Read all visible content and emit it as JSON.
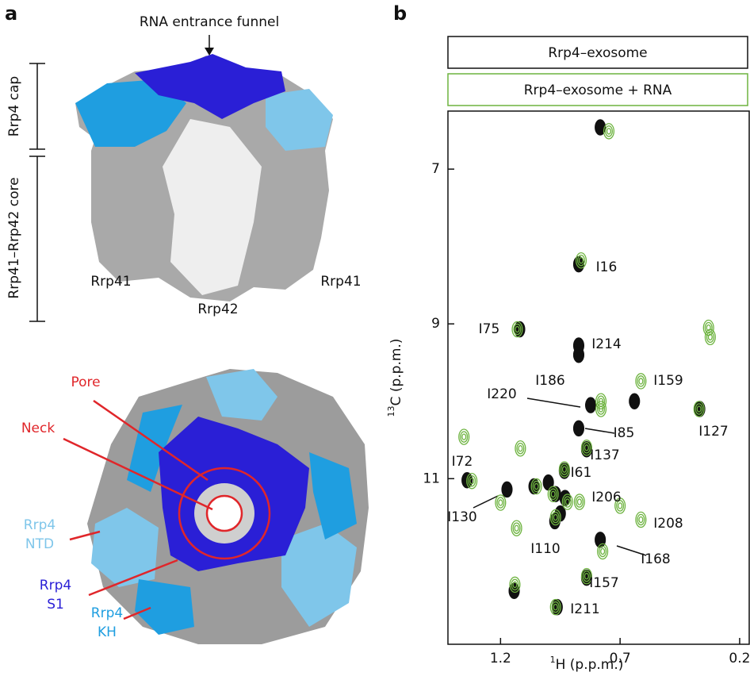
{
  "panel_a": {
    "label": "a",
    "funnel": "RNA entrance funnel",
    "cap": "Rrp4 cap",
    "core": "Rrp41–Rrp42 core",
    "sub_left": "Rrp41",
    "sub_mid": "Rrp42",
    "sub_right": "Rrp41",
    "pore": "Pore",
    "neck": "Neck",
    "ntd": [
      "Rrp4",
      "NTD"
    ],
    "s1": [
      "Rrp4",
      "S1"
    ],
    "kh": [
      "Rrp4",
      "KH"
    ]
  },
  "chart_data": {
    "type": "scatter",
    "label": "b",
    "xlabel": {
      "isotope": "1",
      "text": "H (p.p.m.)"
    },
    "ylabel": {
      "isotope": "13",
      "text": "C (p.p.m.)"
    },
    "xlim": [
      1.42,
      0.16
    ],
    "ylim": [
      6.25,
      13.14
    ],
    "y_inverted": true,
    "xticks": [
      1.2,
      0.7,
      0.2
    ],
    "yticks": [
      7,
      9,
      11
    ],
    "series": [
      {
        "name": "Rrp4–exosome",
        "color": "#111111",
        "x": [
          0.783,
          0.873,
          1.12,
          0.873,
          0.873,
          0.64,
          0.823,
          0.873,
          0.367,
          0.84,
          0.933,
          1.173,
          1.34,
          0.97,
          0.93,
          0.973,
          0.95,
          0.783,
          0.84,
          0.963,
          1.143,
          1.06,
          1.0
        ],
        "values": [
          6.46,
          8.23,
          9.07,
          9.28,
          9.4,
          10.0,
          10.05,
          10.35,
          10.1,
          10.62,
          10.9,
          11.14,
          11.02,
          11.2,
          11.25,
          11.55,
          11.45,
          11.79,
          12.28,
          12.66,
          12.45,
          11.1,
          11.05
        ]
      },
      {
        "name": "Rrp4–exosome + RNA",
        "color": "#6db33f",
        "x": [
          0.747,
          0.863,
          1.13,
          0.323,
          0.33,
          0.613,
          0.78,
          0.78,
          0.37,
          0.84,
          1.117,
          1.353,
          0.933,
          1.2,
          1.32,
          1.05,
          0.98,
          0.92,
          0.87,
          0.613,
          1.133,
          0.97,
          0.773,
          0.84,
          0.97,
          1.14,
          0.7
        ],
        "values": [
          6.51,
          8.18,
          9.07,
          9.17,
          9.05,
          9.74,
          10.0,
          10.1,
          10.1,
          10.6,
          10.61,
          10.46,
          10.88,
          11.31,
          11.03,
          11.1,
          11.2,
          11.3,
          11.3,
          11.53,
          11.64,
          11.5,
          11.94,
          12.26,
          12.66,
          12.37,
          11.35
        ]
      }
    ],
    "annotations": [
      "I16",
      "I75",
      "I214",
      "I186",
      "I159",
      "I220",
      "I85",
      "I127",
      "I137",
      "I72",
      "I61",
      "I206",
      "I130",
      "I208",
      "I110",
      "I168",
      "I157",
      "I211"
    ]
  }
}
